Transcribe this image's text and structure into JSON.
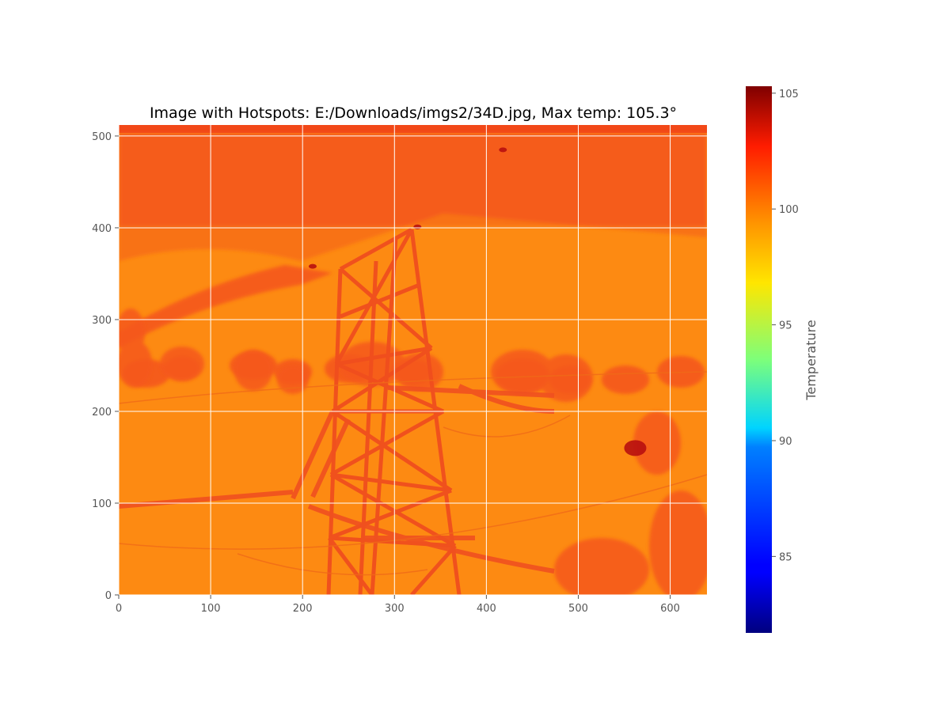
{
  "chart_data": {
    "type": "heatmap",
    "title": "Image with Hotspots: E:/Downloads/imgs2/34D.jpg, Max temp: 105.3°",
    "xlabel": "",
    "ylabel": "",
    "xlim": [
      0,
      640
    ],
    "ylim": [
      0,
      512
    ],
    "xticks": [
      0,
      100,
      200,
      300,
      400,
      500,
      600
    ],
    "yticks": [
      0,
      100,
      200,
      300,
      400,
      500
    ],
    "grid": true,
    "colormap": "jet",
    "colorbar": {
      "label": "Temperature",
      "range": [
        81.7,
        105.3
      ],
      "ticks": [
        85,
        90,
        95,
        100,
        105
      ]
    },
    "max_temp": 105.3,
    "hotspots": [
      {
        "x": 562,
        "y": 160
      },
      {
        "x": 211,
        "y": 358
      },
      {
        "x": 325,
        "y": 401
      },
      {
        "x": 418,
        "y": 485
      }
    ]
  },
  "colors": {
    "background_field": "#fd8a12",
    "vegetation": "#f5581a",
    "tower_structure": "#f05020",
    "hotspot": "#b81010",
    "grid": "#ffffff",
    "axis_spine": "#555555"
  }
}
